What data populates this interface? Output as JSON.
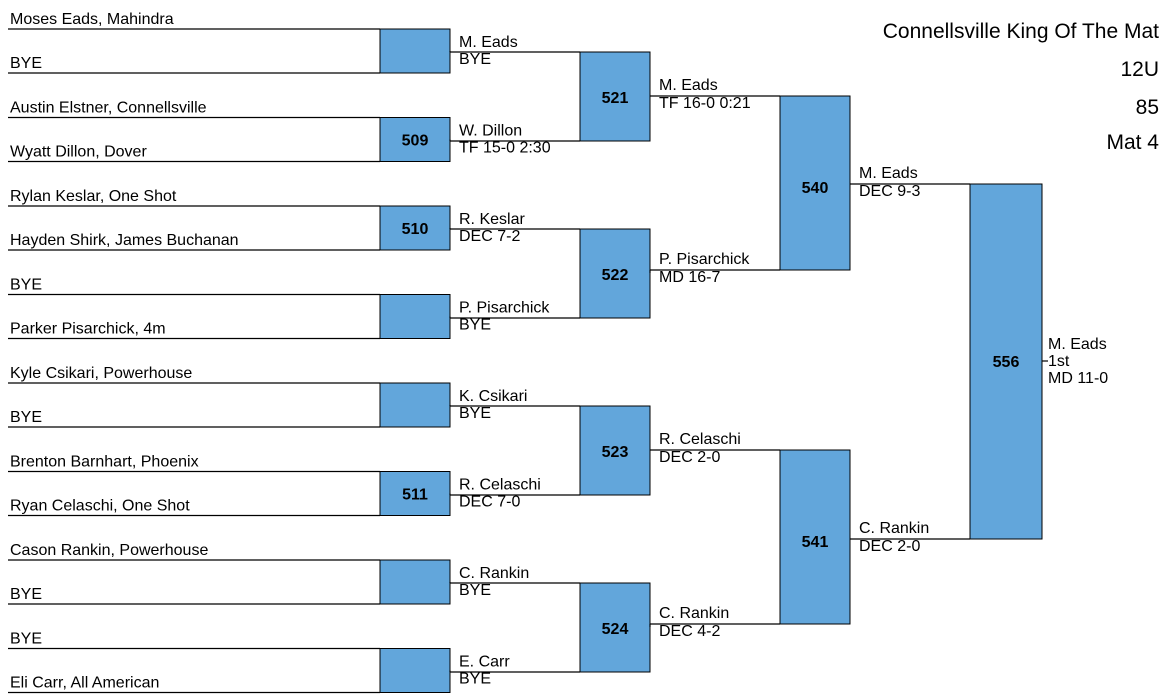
{
  "header": {
    "event": "Connellsville King Of The Mat",
    "age_group": "12U",
    "weight": "85",
    "mat": "Mat 4"
  },
  "round1": [
    {
      "top": "Moses Eads, Mahindra",
      "bottom": "BYE",
      "bout": "",
      "winner": "M. Eads",
      "result": "BYE"
    },
    {
      "top": "Austin Elstner, Connellsville",
      "bottom": "Wyatt Dillon, Dover",
      "bout": "509",
      "winner": "W. Dillon",
      "result": "TF 15-0 2:30"
    },
    {
      "top": "Rylan Keslar, One Shot",
      "bottom": "Hayden Shirk, James Buchanan",
      "bout": "510",
      "winner": "R. Keslar",
      "result": "DEC 7-2"
    },
    {
      "top": "BYE",
      "bottom": "Parker Pisarchick, 4m",
      "bout": "",
      "winner": "P. Pisarchick",
      "result": "BYE"
    },
    {
      "top": "Kyle Csikari, Powerhouse",
      "bottom": "BYE",
      "bout": "",
      "winner": "K. Csikari",
      "result": "BYE"
    },
    {
      "top": "Brenton Barnhart, Phoenix",
      "bottom": "Ryan Celaschi, One Shot",
      "bout": "511",
      "winner": "R. Celaschi",
      "result": "DEC 7-0"
    },
    {
      "top": "Cason Rankin, Powerhouse",
      "bottom": "BYE",
      "bout": "",
      "winner": "C. Rankin",
      "result": "BYE"
    },
    {
      "top": "BYE",
      "bottom": "Eli Carr, All American",
      "bout": "",
      "winner": "E. Carr",
      "result": "BYE"
    }
  ],
  "round2": [
    {
      "bout": "521",
      "winner": "M. Eads",
      "result": "TF 16-0 0:21"
    },
    {
      "bout": "522",
      "winner": "P. Pisarchick",
      "result": "MD 16-7"
    },
    {
      "bout": "523",
      "winner": "R. Celaschi",
      "result": "DEC 2-0"
    },
    {
      "bout": "524",
      "winner": "C. Rankin",
      "result": "DEC 4-2"
    }
  ],
  "round3": [
    {
      "bout": "540",
      "winner": "M. Eads",
      "result": "DEC 9-3"
    },
    {
      "bout": "541",
      "winner": "C. Rankin",
      "result": "DEC 2-0"
    }
  ],
  "final": {
    "bout": "556",
    "winner": "M. Eads",
    "place": "1st",
    "result": "MD 11-0"
  },
  "colors": {
    "box_fill": "#62a6db",
    "lines": "#000000"
  }
}
